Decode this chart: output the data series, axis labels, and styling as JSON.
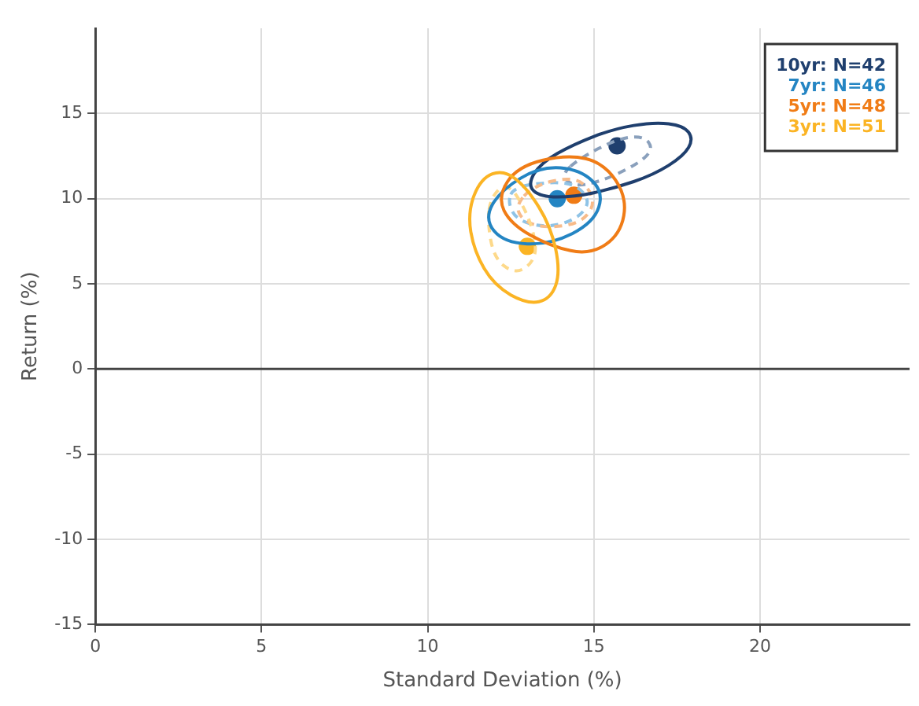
{
  "chart_data": {
    "type": "scatter",
    "xlabel": "Standard Deviation (%)",
    "ylabel": "Return (%)",
    "xlim": [
      0,
      24.5
    ],
    "xticks": [
      0,
      5,
      10,
      15,
      20
    ],
    "ylim": [
      -15,
      20
    ],
    "yticks": [
      -15,
      -10,
      -5,
      0,
      5,
      10,
      15
    ],
    "grid": true,
    "legend": "top right",
    "marker": "circle",
    "ref_lines": [
      {
        "axis": "y",
        "value": 0,
        "color": "#444444"
      }
    ],
    "series": [
      {
        "name": "10yr: N=42",
        "color": "#1f3f6e",
        "x": [
          15.7
        ],
        "values": [
          13.1
        ]
      },
      {
        "name": "7yr: N=46",
        "color": "#2485c3",
        "x": [
          13.9
        ],
        "values": [
          10.0
        ]
      },
      {
        "name": "5yr: N=48",
        "color": "#f07c16",
        "x": [
          14.4
        ],
        "values": [
          10.2
        ]
      },
      {
        "name": "3yr: N=51",
        "color": "#fbb424",
        "x": [
          13.0
        ],
        "values": [
          7.2
        ]
      }
    ]
  }
}
